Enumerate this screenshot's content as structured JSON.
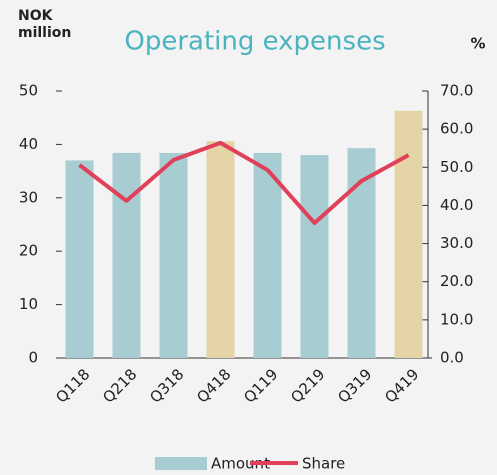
{
  "chart_data": {
    "type": "bar_line",
    "title": "Operating expenses",
    "ylabel": [
      "NOK",
      "million"
    ],
    "y2label": "%",
    "categories": [
      "Q118",
      "Q218",
      "Q318",
      "Q418",
      "Q119",
      "Q219",
      "Q319",
      "Q419"
    ],
    "series": [
      {
        "name": "Amount",
        "type": "bar",
        "color": "#a7cdd3",
        "colors": [
          "#a7cdd3",
          "#a7cdd3",
          "#a7cdd3",
          "#e3d3a5",
          "#a7cdd3",
          "#a7cdd3",
          "#a7cdd3",
          "#e3d3a5"
        ],
        "values": [
          37,
          38.4,
          38.4,
          40.6,
          38.4,
          38,
          39.3,
          46.3
        ]
      },
      {
        "name": "Share",
        "type": "line",
        "color": "#e0405a",
        "axis": "y2",
        "values": [
          50.6,
          41.2,
          51.9,
          56.4,
          49.3,
          35.4,
          46.4,
          53.2
        ]
      }
    ],
    "ylim": [
      0,
      50
    ],
    "yticks": [
      0,
      10,
      20,
      30,
      40,
      50
    ],
    "y2lim": [
      0,
      70
    ],
    "y2ticks": [
      {
        "value": 0,
        "label": "0.0"
      },
      {
        "value": 10,
        "label": "10.0"
      },
      {
        "value": 20,
        "label": "20.0"
      },
      {
        "value": 30,
        "label": "30.0"
      },
      {
        "value": 40,
        "label": "40.0"
      },
      {
        "value": 50,
        "label": "50.0"
      },
      {
        "value": 60,
        "label": "60.0"
      },
      {
        "value": 70,
        "label": "70.0"
      }
    ],
    "legend": "bottom"
  }
}
